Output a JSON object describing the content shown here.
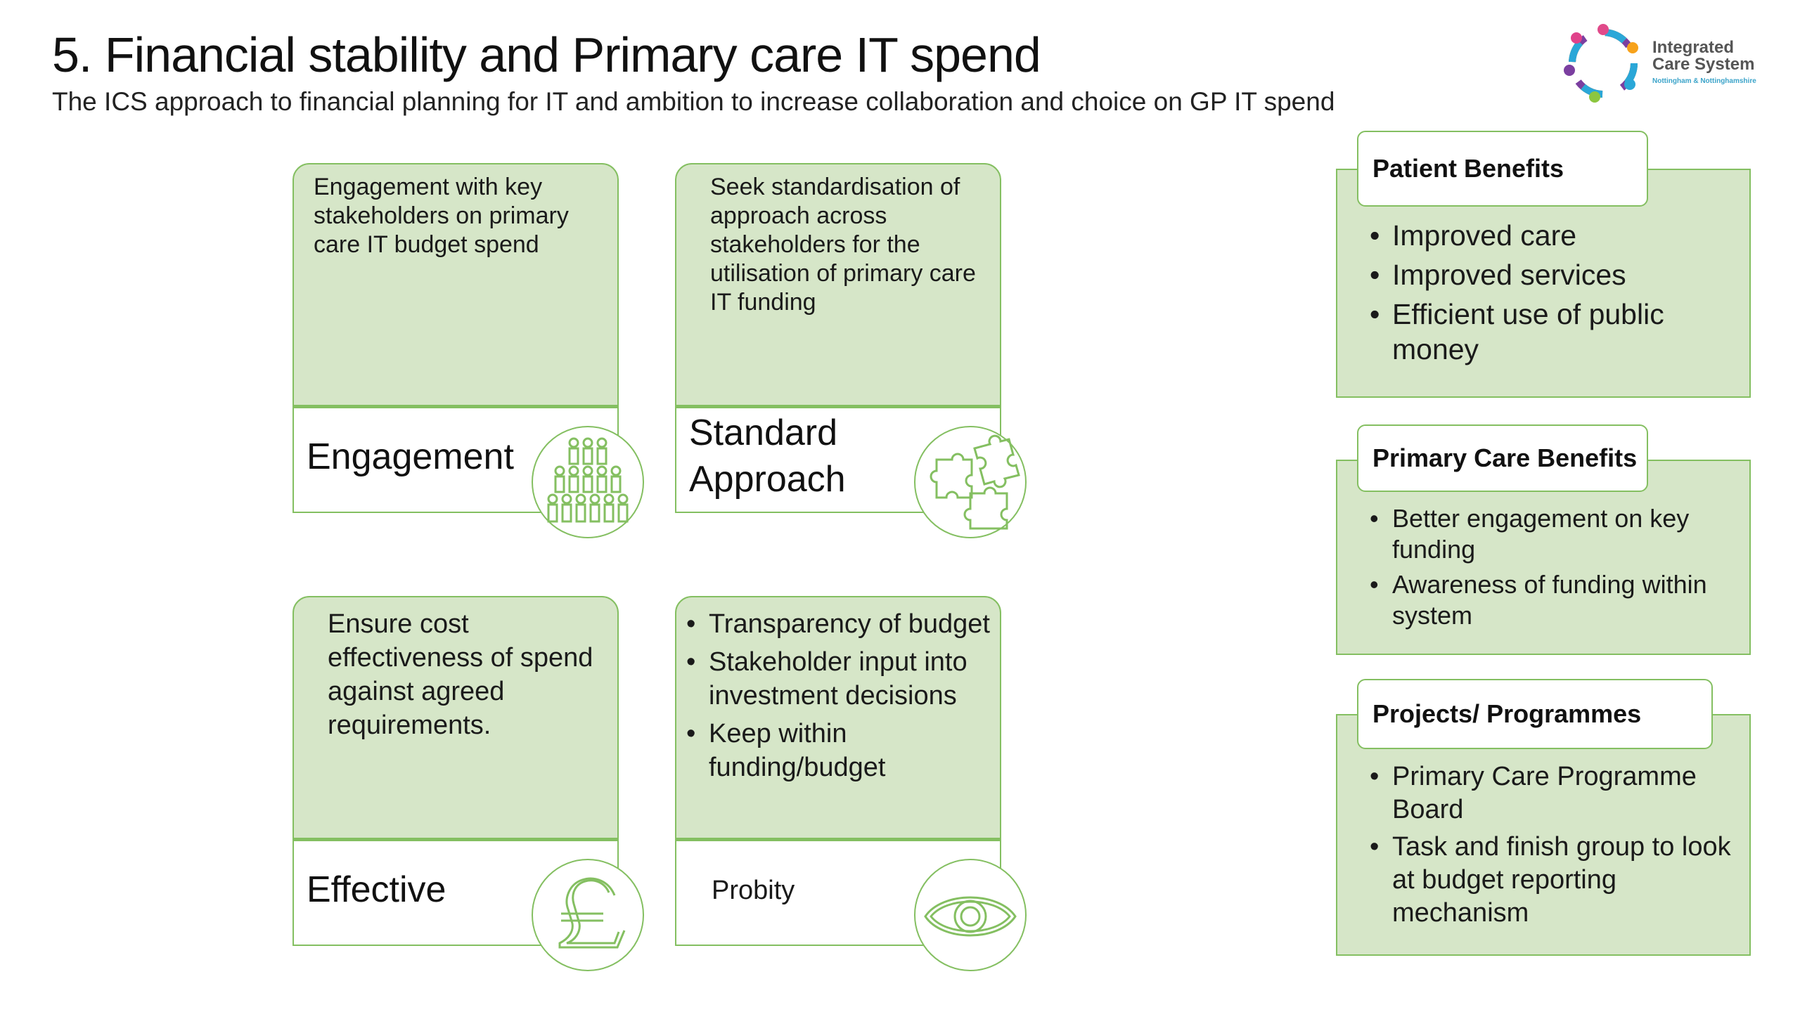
{
  "header": {
    "title": "5. Financial stability and Primary care IT spend",
    "subtitle": "The ICS approach to financial planning for IT and ambition to increase collaboration and choice on GP IT spend"
  },
  "logo": {
    "line1": "Integrated",
    "line2": "Care System",
    "line3": "Nottingham & Nottinghamshire"
  },
  "cards": {
    "engagement": {
      "text": "Engagement with key stakeholders on primary care IT budget spend",
      "label": "Engagement",
      "icon": "people-crowd-icon"
    },
    "standard": {
      "text": "Seek standardisation of approach across stakeholders for the utilisation of primary care IT funding",
      "label_line1": "Standard",
      "label_line2": "Approach",
      "icon": "puzzle-pieces-icon"
    },
    "effective": {
      "text": "Ensure cost effectiveness of spend against agreed requirements.",
      "label": "Effective",
      "icon": "pound-sign-icon"
    },
    "probity": {
      "bullets": [
        "Transparency of budget",
        "Stakeholder input into investment decisions",
        "Keep within funding/budget"
      ],
      "label": "Probity",
      "icon": "eye-icon"
    }
  },
  "panels": {
    "patient": {
      "heading": "Patient Benefits",
      "bullets": [
        "Improved care",
        "Improved services",
        "Efficient use of public money"
      ]
    },
    "primary_care": {
      "heading": "Primary Care Benefits",
      "bullets": [
        "Better engagement on key funding",
        "Awareness of funding within system"
      ]
    },
    "projects": {
      "heading": "Projects/ Programmes",
      "bullets": [
        "Primary Care Programme Board",
        "Task and finish group to look at budget reporting mechanism"
      ]
    }
  },
  "colors": {
    "panel_fill": "#d6e6c8",
    "border_green": "#84bf61"
  }
}
